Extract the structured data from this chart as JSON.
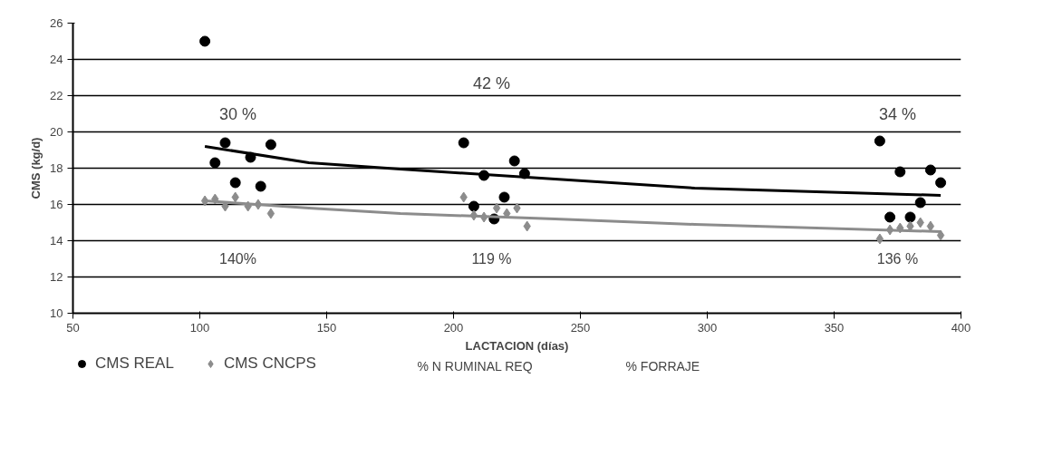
{
  "chart_data": {
    "type": "scatter",
    "xlabel": "LACTACION (días)",
    "ylabel": "CMS (kg/d)",
    "xlim": [
      50,
      400
    ],
    "ylim": [
      10,
      26
    ],
    "xticks": [
      50,
      100,
      150,
      200,
      250,
      300,
      350,
      400
    ],
    "yticks": [
      10,
      12,
      14,
      16,
      18,
      20,
      22,
      24,
      26
    ],
    "grid": "y",
    "legend": "bottom",
    "series": [
      {
        "name": "CMS REAL",
        "type": "scatter",
        "marker": "circle",
        "color": "#000000",
        "x": [
          102,
          106,
          110,
          114,
          120,
          124,
          128,
          204,
          208,
          212,
          216,
          220,
          224,
          228,
          368,
          372,
          376,
          380,
          384,
          388,
          392
        ],
        "values": [
          25.0,
          18.3,
          19.4,
          17.2,
          18.6,
          17.0,
          19.3,
          19.4,
          15.9,
          17.6,
          15.2,
          16.4,
          18.4,
          17.7,
          19.5,
          15.3,
          17.8,
          15.3,
          16.1,
          17.9,
          17.2
        ]
      },
      {
        "name": "CMS CNCPS",
        "type": "scatter",
        "marker": "diamond",
        "color": "#8c8c8c",
        "x": [
          102,
          106,
          110,
          114,
          119,
          123,
          128,
          204,
          208,
          212,
          217,
          221,
          225,
          229,
          368,
          372,
          376,
          380,
          384,
          388,
          392
        ],
        "values": [
          16.2,
          16.3,
          15.9,
          16.4,
          15.9,
          16.0,
          15.5,
          16.4,
          15.4,
          15.3,
          15.8,
          15.5,
          15.8,
          14.8,
          14.1,
          14.6,
          14.7,
          14.8,
          15.0,
          14.8,
          14.3
        ]
      },
      {
        "type": "line",
        "color": "#000000",
        "x": [
          102,
          143,
          179,
          240,
          295,
          392
        ],
        "values": [
          19.2,
          18.3,
          17.95,
          17.4,
          16.9,
          16.5
        ]
      },
      {
        "type": "line",
        "color": "#8c8c8c",
        "x": [
          102,
          143,
          179,
          240,
          295,
          392
        ],
        "values": [
          16.2,
          15.8,
          15.5,
          15.2,
          14.9,
          14.5
        ]
      }
    ],
    "annotations": [
      {
        "text": "30 %",
        "x": 115,
        "y": 21.0
      },
      {
        "text": "42 %",
        "x": 215,
        "y": 22.7
      },
      {
        "text": "34 %",
        "x": 375,
        "y": 21.0
      },
      "140%",
      "119 %",
      "136 %",
      "% N RUMINAL REQ",
      "% FORRAJE"
    ]
  }
}
